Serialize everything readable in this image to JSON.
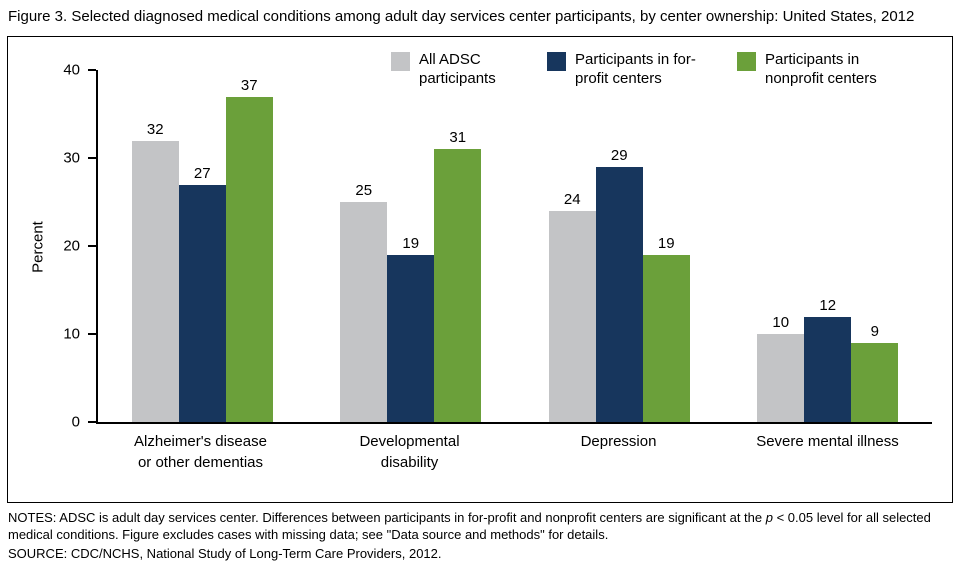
{
  "title": "Figure 3. Selected diagnosed medical conditions among adult day services center participants, by center ownership: United States, 2012",
  "notes": {
    "part1": "NOTES: ADSC is adult day services center. Differences between participants in for-profit and nonprofit centers are significant at the ",
    "italic_p": "p",
    "part2": " < 0.05 level for all selected medical conditions. Figure excludes cases with missing data; see \"Data source and methods\" for details."
  },
  "source": "SOURCE: CDC/NCHS, National Study of Long-Term Care Providers, 2012.",
  "chart_data": {
    "type": "bar",
    "title": "Figure 3. Selected diagnosed medical conditions among adult day services center participants, by center ownership: United States, 2012",
    "xlabel": "",
    "ylabel": "Percent",
    "ylim": [
      0,
      40
    ],
    "yticks": [
      0,
      10,
      20,
      30,
      40
    ],
    "grid": false,
    "legend_position": "top",
    "categories": [
      "Alzheimer's disease or other dementias",
      "Developmental disability",
      "Depression",
      "Severe mental illness"
    ],
    "series": [
      {
        "name": "All ADSC participants",
        "color": "#c3c4c6",
        "values": [
          32,
          25,
          24,
          10
        ]
      },
      {
        "name": "Participants in for-profit centers",
        "color": "#17365d",
        "values": [
          27,
          19,
          29,
          12
        ]
      },
      {
        "name": "Participants in nonprofit centers",
        "color": "#6ba03a",
        "values": [
          37,
          31,
          19,
          9
        ]
      }
    ]
  }
}
